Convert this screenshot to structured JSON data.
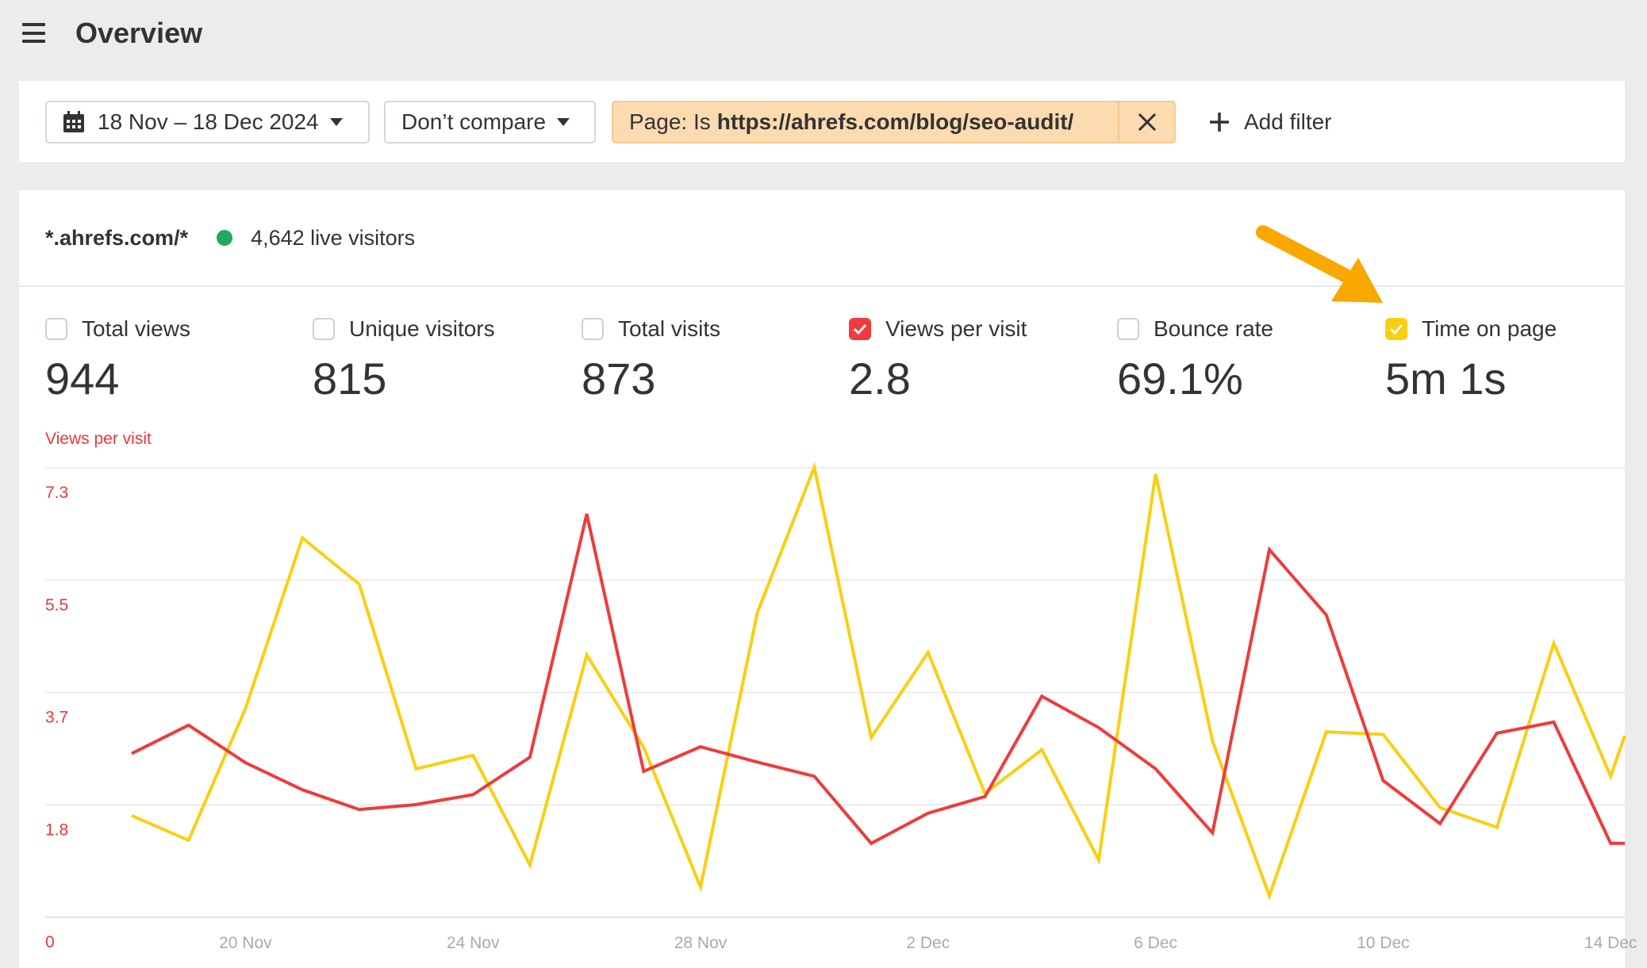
{
  "header": {
    "title": "Overview",
    "menu_icon": "hamburger-menu-icon"
  },
  "filters": {
    "date_range": "18 Nov – 18 Dec 2024",
    "date_icon": "calendar-icon",
    "compare": "Don’t compare",
    "chip": {
      "prefix": "Page: Is",
      "value": "https://ahrefs.com/blog/seo-audit/",
      "close_icon": "close-icon",
      "bg_color": "#FDDBB0"
    },
    "add_filter": "Add filter"
  },
  "site": {
    "name": "*.ahrefs.com/*",
    "live_visitors": "4,642 live visitors",
    "live_dot_color": "#22A861"
  },
  "metrics": [
    {
      "label": "Total views",
      "value": "944",
      "checked": false,
      "color": ""
    },
    {
      "label": "Unique visitors",
      "value": "815",
      "checked": false,
      "color": ""
    },
    {
      "label": "Total visits",
      "value": "873",
      "checked": false,
      "color": ""
    },
    {
      "label": "Views per visit",
      "value": "2.8",
      "checked": true,
      "color": "#EF3B3B"
    },
    {
      "label": "Bounce rate",
      "value": "69.1%",
      "checked": false,
      "color": ""
    },
    {
      "label": "Time on page",
      "value": "5m 1s",
      "checked": true,
      "color": "#FACF12"
    }
  ],
  "annotation": {
    "arrow_color": "#F9A800",
    "points_to": "Time on page checkbox"
  },
  "chart_data": {
    "type": "line",
    "title": "",
    "ylabel": "Views per visit",
    "xlabel": "",
    "ylim": [
      0,
      7.3
    ],
    "yticks": [
      "0",
      "1.8",
      "3.7",
      "5.5",
      "7.3"
    ],
    "xtick_labels": [
      "20 Nov",
      "24 Nov",
      "28 Nov",
      "2 Dec",
      "6 Dec",
      "10 Dec",
      "14 Dec"
    ],
    "grid": true,
    "legend": "none (series toggled via metric checkboxes)",
    "x": [
      "18 Nov",
      "19 Nov",
      "20 Nov",
      "21 Nov",
      "22 Nov",
      "23 Nov",
      "24 Nov",
      "25 Nov",
      "26 Nov",
      "27 Nov",
      "28 Nov",
      "29 Nov",
      "30 Nov",
      "1 Dec",
      "2 Dec",
      "3 Dec",
      "4 Dec",
      "5 Dec",
      "6 Dec",
      "7 Dec",
      "8 Dec",
      "9 Dec",
      "10 Dec",
      "11 Dec",
      "12 Dec",
      "13 Dec",
      "14 Dec"
    ],
    "series": [
      {
        "name": "Views per visit",
        "color": "#EF3B3B",
        "values": [
          2.66,
          3.12,
          2.51,
          2.07,
          1.75,
          1.83,
          1.99,
          2.6,
          6.55,
          2.37,
          2.77,
          2.52,
          2.29,
          1.2,
          1.69,
          1.96,
          3.59,
          3.08,
          2.41,
          1.37,
          5.97,
          4.91,
          2.22,
          1.52,
          2.99,
          3.17,
          1.2
        ]
      },
      {
        "name": "Time on page (relative, plotted on shared scale)",
        "color": "#FACF12",
        "values": [
          1.65,
          1.25,
          3.39,
          6.16,
          5.41,
          2.41,
          2.63,
          0.85,
          4.26,
          2.76,
          0.49,
          4.95,
          7.31,
          2.92,
          4.3,
          2.01,
          2.72,
          0.93,
          7.2,
          2.86,
          0.35,
          3.01,
          2.97,
          1.78,
          1.46,
          4.45,
          2.29
        ]
      }
    ]
  }
}
